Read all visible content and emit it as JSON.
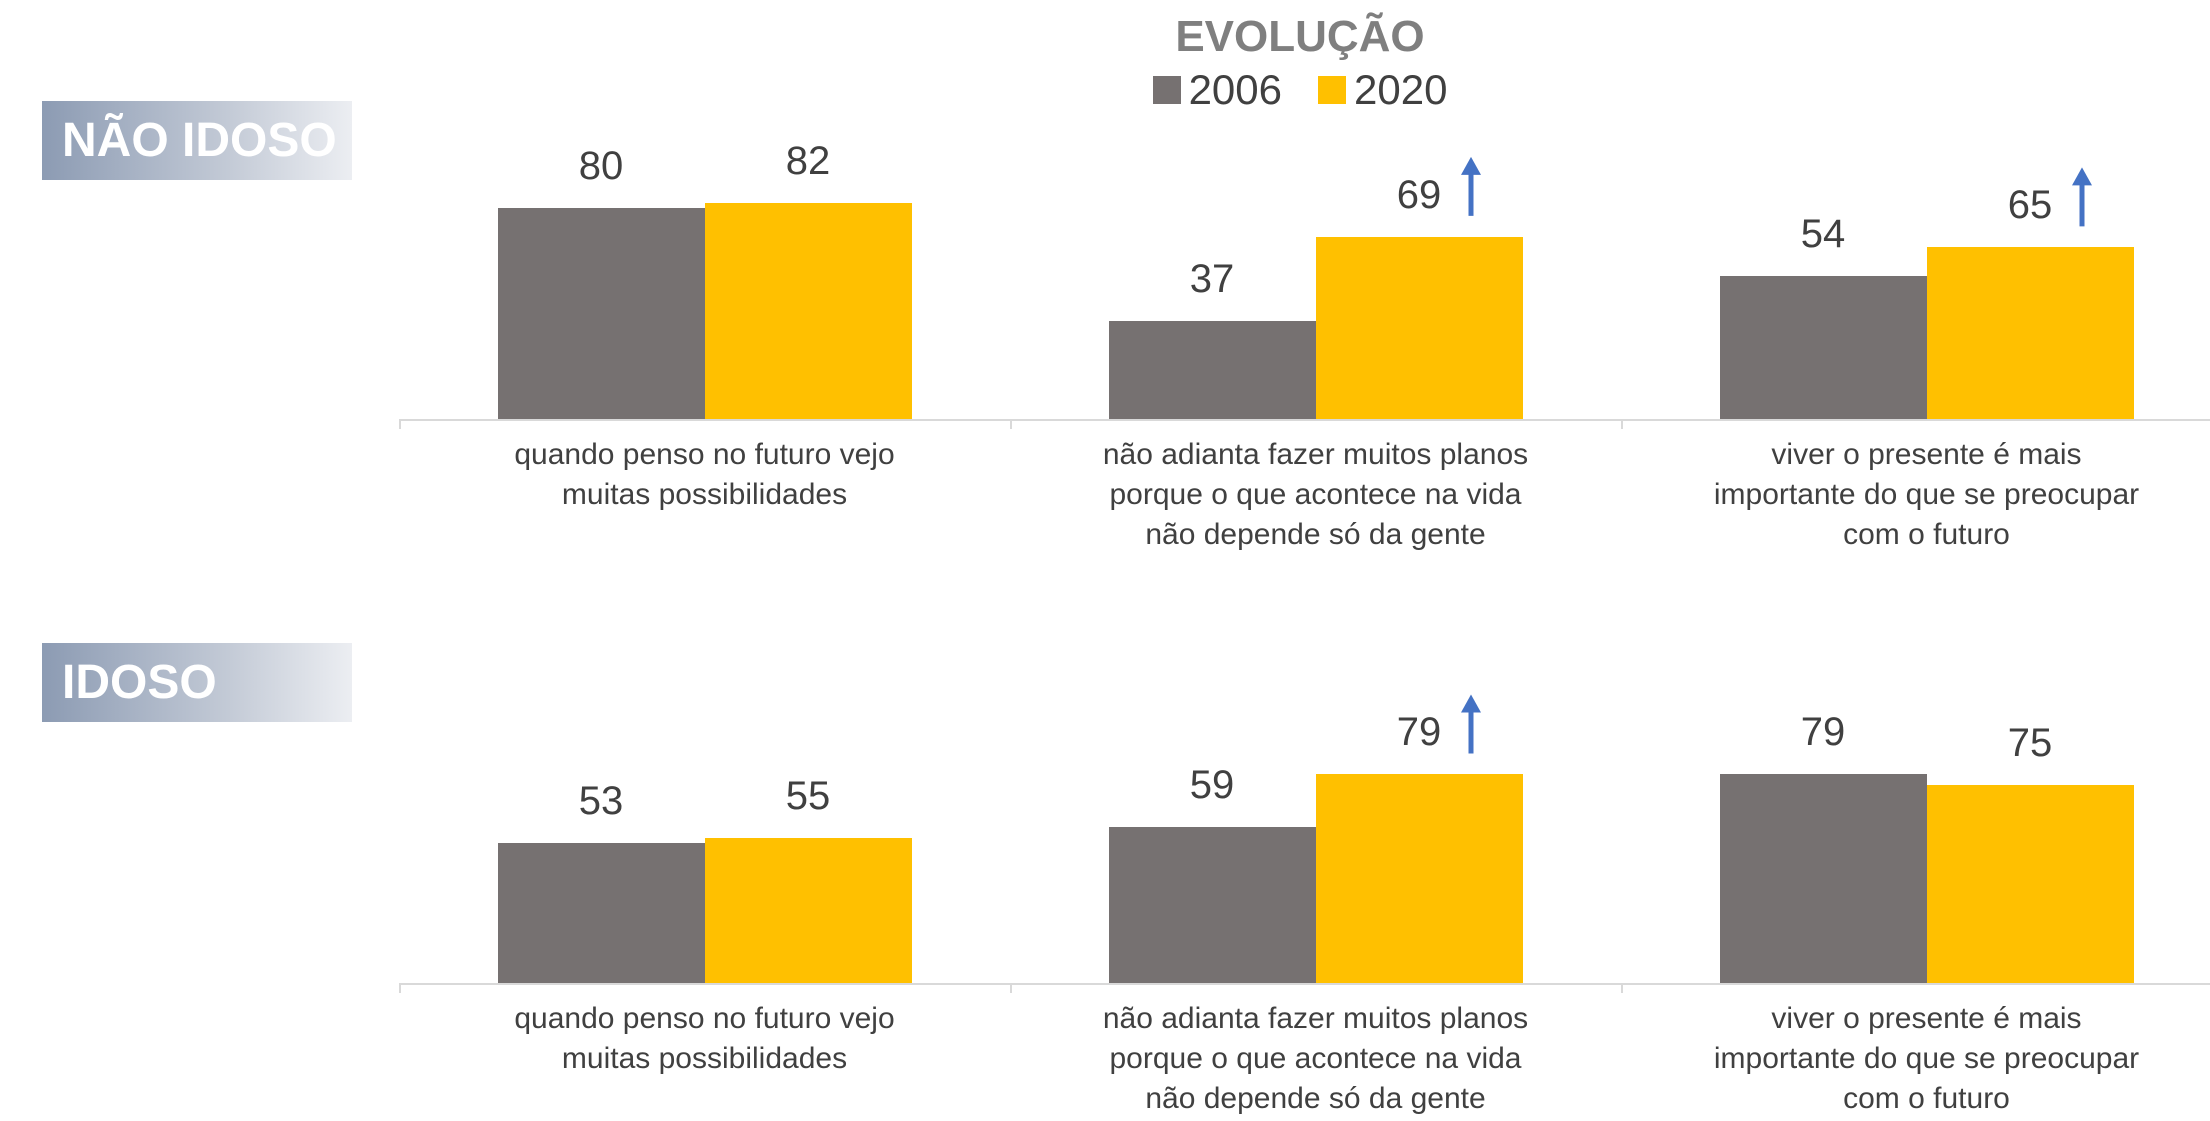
{
  "title": "EVOLUÇÃO",
  "chart_data": [
    {
      "type": "bar",
      "title": "NÃO IDOSO",
      "categories": [
        "quando penso no futuro vejo muitas possibilidades",
        "não adianta fazer muitos planos porque o que acontece na vida não depende só da gente",
        "viver o presente é mais importante do que se preocupar com o futuro"
      ],
      "series": [
        {
          "name": "2006",
          "color": "#767171",
          "values": [
            80,
            37,
            54
          ]
        },
        {
          "name": "2020",
          "color": "#ffc000",
          "values": [
            82,
            69,
            65
          ]
        }
      ],
      "ylim": [
        0,
        100
      ]
    },
    {
      "type": "bar",
      "title": "IDOSO",
      "categories": [
        "quando penso no futuro vejo muitas possibilidades",
        "não adianta fazer muitos planos porque o que acontece na vida não depende só da gente",
        "viver o presente é mais importante do que se preocupar com o futuro"
      ],
      "series": [
        {
          "name": "2006",
          "color": "#767171",
          "values": [
            53,
            59,
            79
          ]
        },
        {
          "name": "2020",
          "color": "#ffc000",
          "values": [
            55,
            79,
            75
          ]
        }
      ],
      "ylim": [
        0,
        100
      ]
    }
  ]
}
